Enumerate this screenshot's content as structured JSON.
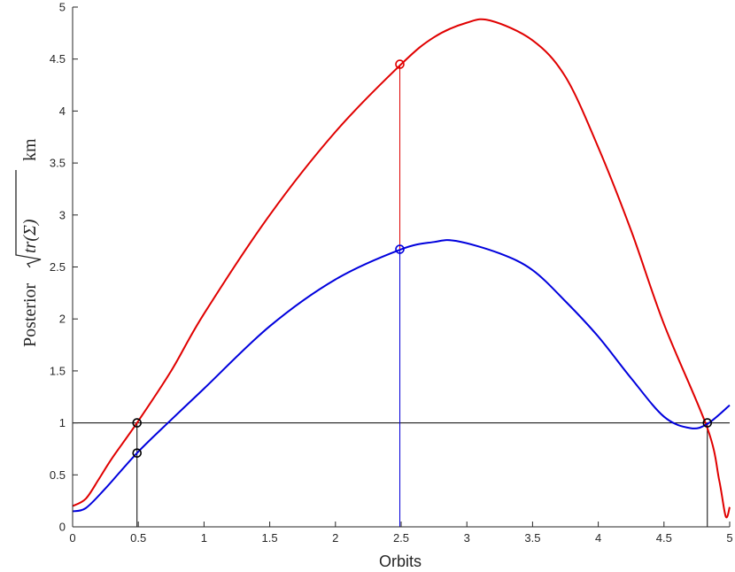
{
  "chart_data": {
    "type": "line",
    "xlabel": "Orbits",
    "ylabel_prefix": "Posterior",
    "ylabel_radicand": "tr(Σ)",
    "ylabel_unit": "km",
    "xlim": [
      0,
      5
    ],
    "ylim": [
      0,
      5
    ],
    "xticks": [
      0,
      0.5,
      1,
      1.5,
      2,
      2.5,
      3,
      3.5,
      4,
      4.5,
      5
    ],
    "xtick_labels": [
      "0",
      "0.5",
      "1",
      "1.5",
      "2",
      "2.5",
      "3",
      "3.5",
      "4",
      "4.5",
      "5"
    ],
    "yticks": [
      0,
      0.5,
      1,
      1.5,
      2,
      2.5,
      3,
      3.5,
      4,
      4.5,
      5
    ],
    "ytick_labels": [
      "0",
      "0.5",
      "1",
      "1.5",
      "2",
      "2.5",
      "3",
      "3.5",
      "4",
      "4.5",
      "5"
    ],
    "grid": false,
    "threshold": 1,
    "series": [
      {
        "color": "#e00000",
        "x": [
          0,
          0.1,
          0.2,
          0.3,
          0.49,
          0.75,
          1.0,
          1.5,
          2.0,
          2.5,
          2.75,
          3.0,
          3.18,
          3.5,
          3.75,
          4.0,
          4.25,
          4.5,
          4.83,
          4.92,
          4.97,
          5.0
        ],
        "y": [
          0.2,
          0.27,
          0.46,
          0.66,
          1.0,
          1.5,
          2.05,
          3.0,
          3.8,
          4.45,
          4.71,
          4.85,
          4.87,
          4.68,
          4.33,
          3.65,
          2.85,
          1.95,
          0.95,
          0.45,
          0.1,
          0.19
        ]
      },
      {
        "color": "#0000dd",
        "x": [
          0,
          0.1,
          0.25,
          0.49,
          0.75,
          1.0,
          1.5,
          2.0,
          2.5,
          2.75,
          2.92,
          3.25,
          3.5,
          3.75,
          4.0,
          4.25,
          4.5,
          4.7,
          4.83,
          5.0
        ],
        "y": [
          0.15,
          0.18,
          0.37,
          0.71,
          1.03,
          1.33,
          1.93,
          2.38,
          2.67,
          2.74,
          2.75,
          2.63,
          2.47,
          2.17,
          1.83,
          1.43,
          1.06,
          0.95,
          0.99,
          1.17
        ]
      }
    ],
    "verticals": [
      {
        "x": 0.49,
        "y": 1.0,
        "color": "#000000"
      },
      {
        "x": 2.49,
        "y": 4.45,
        "color": "#e00000"
      },
      {
        "x": 2.49,
        "y": 2.67,
        "color": "#0000dd"
      },
      {
        "x": 4.83,
        "y": 1.0,
        "color": "#000000"
      }
    ],
    "markers": [
      {
        "x": 0.49,
        "y": 1.0,
        "color": "#000000"
      },
      {
        "x": 0.49,
        "y": 0.71,
        "color": "#000000"
      },
      {
        "x": 2.49,
        "y": 4.45,
        "color": "#e00000"
      },
      {
        "x": 2.49,
        "y": 2.67,
        "color": "#0000dd"
      },
      {
        "x": 4.83,
        "y": 1.0,
        "color": "#000000"
      }
    ]
  }
}
